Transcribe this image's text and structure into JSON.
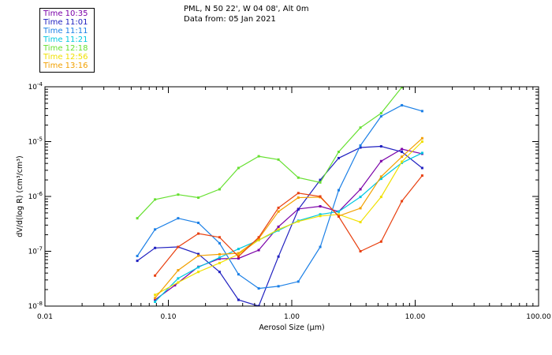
{
  "header": {
    "station": "PML, N 50 22', W 04 08', Alt 0m",
    "date_line": "Data from: 05 Jan 2021"
  },
  "chart_data": {
    "type": "line",
    "title": "",
    "xlabel": "Aerosol Size (µm)",
    "ylabel": "dV/d(log R)  (cm³/cm³)",
    "xscale": "log",
    "yscale": "log",
    "xlim": [
      0.01,
      100
    ],
    "ylim": [
      1e-08,
      0.0001
    ],
    "x_ticks": [
      {
        "value": 0.01,
        "label": "0.01"
      },
      {
        "value": 0.1,
        "label": "0.10"
      },
      {
        "value": 1,
        "label": "1.00"
      },
      {
        "value": 10,
        "label": "10.00"
      },
      {
        "value": 100,
        "label": "100.00"
      }
    ],
    "y_ticks": [
      {
        "value": 1e-08,
        "mant": "10",
        "exp": "-8"
      },
      {
        "value": 1e-07,
        "mant": "10",
        "exp": "-7"
      },
      {
        "value": 1e-06,
        "mant": "10",
        "exp": "-6"
      },
      {
        "value": 1e-05,
        "mant": "10",
        "exp": "-5"
      },
      {
        "value": 0.0001,
        "mant": "10",
        "exp": "-4"
      }
    ],
    "grid": false,
    "legend_position": "top-left",
    "series": [
      {
        "name": "Time 10:35",
        "color": "#7a00a8",
        "x": [
          0.078,
          0.113,
          0.175,
          0.26,
          0.37,
          0.54,
          0.78,
          1.13,
          1.7,
          2.4,
          3.6,
          5.3,
          7.8,
          11.4
        ],
        "y": [
          1.3e-08,
          2.4e-08,
          5.2e-08,
          7.3e-08,
          7.4e-08,
          1.05e-07,
          2.8e-07,
          5.9e-07,
          6.6e-07,
          5.3e-07,
          1.35e-06,
          4.4e-06,
          7.3e-06,
          6e-06
        ]
      },
      {
        "name": "Time 11:01",
        "color": "#2020c0",
        "x": [
          0.056,
          0.078,
          0.12,
          0.175,
          0.26,
          0.37,
          0.54,
          0.78,
          1.13,
          1.7,
          2.4,
          3.6,
          5.3,
          7.8,
          11.4
        ],
        "y": [
          6.7e-08,
          1.15e-07,
          1.2e-07,
          8.9e-08,
          4.2e-08,
          1.3e-08,
          1e-08,
          8e-08,
          5.8e-07,
          2e-06,
          5e-06,
          7.8e-06,
          8.2e-06,
          6.5e-06,
          3.3e-06
        ]
      },
      {
        "name": "Time 11:11",
        "color": "#1a7fe6",
        "x": [
          0.056,
          0.078,
          0.12,
          0.175,
          0.26,
          0.37,
          0.54,
          0.78,
          1.13,
          1.7,
          2.4,
          3.6,
          5.3,
          7.8,
          11.4
        ],
        "y": [
          8.2e-08,
          2.5e-07,
          4e-07,
          3.3e-07,
          1.4e-07,
          3.8e-08,
          2.1e-08,
          2.3e-08,
          2.8e-08,
          1.2e-07,
          1.3e-06,
          8.5e-06,
          2.9e-05,
          4.6e-05,
          3.6e-05
        ]
      },
      {
        "name": "Time 11:21",
        "color": "#00c8e0",
        "x": [
          0.078,
          0.12,
          0.175,
          0.26,
          0.37,
          0.54,
          0.78,
          1.13,
          1.7,
          2.4,
          3.6,
          5.3,
          7.8,
          11.4
        ],
        "y": [
          1.2e-08,
          3.2e-08,
          5.1e-08,
          7.7e-08,
          1.1e-07,
          1.6e-07,
          2.4e-07,
          3.6e-07,
          4.7e-07,
          5.3e-07,
          9.8e-07,
          2.1e-06,
          4.1e-06,
          6.2e-06
        ]
      },
      {
        "name": "Time 12:18",
        "color": "#66e030",
        "x": [
          0.056,
          0.078,
          0.12,
          0.175,
          0.26,
          0.37,
          0.54,
          0.78,
          1.13,
          1.7,
          2.4,
          3.6,
          5.3,
          7.8
        ],
        "y": [
          4e-07,
          8.8e-07,
          1.08e-06,
          9.5e-07,
          1.35e-06,
          3.3e-06,
          5.4e-06,
          4.7e-06,
          2.2e-06,
          1.8e-06,
          6.5e-06,
          1.8e-05,
          3.3e-05,
          9.8e-05
        ]
      },
      {
        "name": "Time 12:56",
        "color": "#f0e000",
        "x": [
          0.078,
          0.12,
          0.175,
          0.26,
          0.37,
          0.54,
          0.78,
          1.13,
          1.7,
          2.4,
          3.6,
          5.3,
          7.8,
          11.4
        ],
        "y": [
          1.6e-08,
          2.7e-08,
          4.2e-08,
          6.1e-08,
          8.8e-08,
          1.6e-07,
          2.5e-07,
          3.5e-07,
          4.4e-07,
          4.7e-07,
          3.4e-07,
          9.8e-07,
          4.3e-06,
          1e-05
        ]
      },
      {
        "name": "Time 13:16",
        "color": "#f2a000",
        "x": [
          0.078,
          0.12,
          0.175,
          0.26,
          0.37,
          0.54,
          0.78,
          1.13,
          1.7,
          2.4,
          3.6,
          5.3,
          7.8,
          11.4
        ],
        "y": [
          1.4e-08,
          4.5e-08,
          8.3e-08,
          8.8e-08,
          9.2e-08,
          1.7e-07,
          5.3e-07,
          9.5e-07,
          9.7e-07,
          4.4e-07,
          6.1e-07,
          2.3e-06,
          5.3e-06,
          1.15e-05
        ]
      },
      {
        "name": "",
        "color": "#e84010",
        "x": [
          0.078,
          0.12,
          0.175,
          0.26,
          0.37,
          0.54,
          0.78,
          1.13,
          1.7,
          2.4,
          3.6,
          5.3,
          7.8,
          11.4
        ],
        "y": [
          3.6e-08,
          1.2e-07,
          2.1e-07,
          1.8e-07,
          8e-08,
          1.8e-07,
          6.2e-07,
          1.15e-06,
          1e-06,
          4.3e-07,
          1e-07,
          1.5e-07,
          8.2e-07,
          2.4e-06
        ]
      }
    ]
  }
}
